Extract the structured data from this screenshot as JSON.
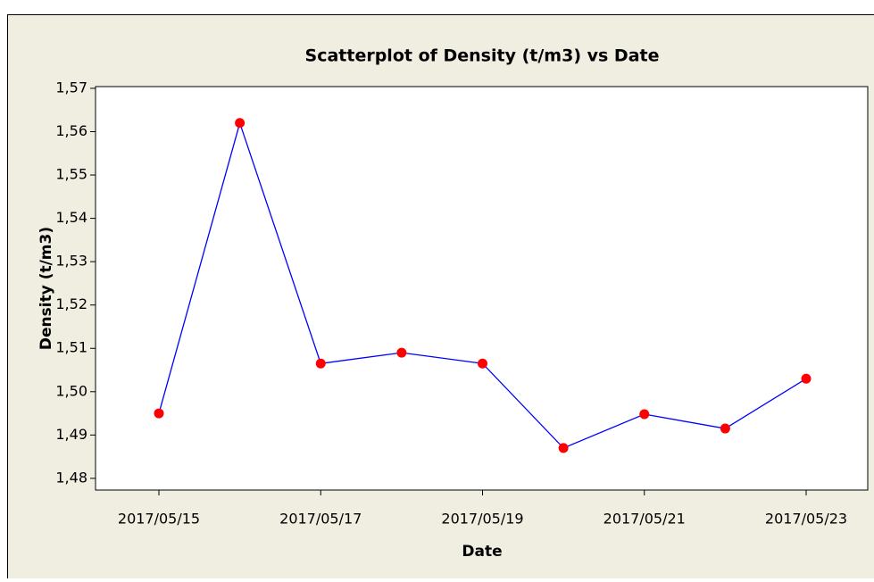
{
  "chart_data": {
    "type": "line",
    "title": "Scatterplot of Density (t/m3) vs Date",
    "xlabel": "Date",
    "ylabel": "Density (t/m3)",
    "x": [
      "2017/05/15",
      "2017/05/16",
      "2017/05/17",
      "2017/05/18",
      "2017/05/19",
      "2017/05/20",
      "2017/05/21",
      "2017/05/22",
      "2017/05/23"
    ],
    "series": [
      {
        "name": "Density (t/m3)",
        "line_color": "#0000ff",
        "marker_color": "#ff0000",
        "values": [
          1.495,
          1.562,
          1.5065,
          1.509,
          1.5065,
          1.487,
          1.4948,
          1.4915,
          1.503
        ]
      }
    ],
    "xticks": [
      "2017/05/15",
      "2017/05/17",
      "2017/05/19",
      "2017/05/21",
      "2017/05/23"
    ],
    "ylim": [
      1.4773,
      1.5704
    ],
    "yticks": [
      {
        "value": 1.48,
        "label": "1,48"
      },
      {
        "value": 1.49,
        "label": "1,49"
      },
      {
        "value": 1.5,
        "label": "1,50"
      },
      {
        "value": 1.51,
        "label": "1,51"
      },
      {
        "value": 1.52,
        "label": "1,52"
      },
      {
        "value": 1.53,
        "label": "1,53"
      },
      {
        "value": 1.54,
        "label": "1,54"
      },
      {
        "value": 1.55,
        "label": "1,55"
      },
      {
        "value": 1.56,
        "label": "1,56"
      },
      {
        "value": 1.57,
        "label": "1,57"
      }
    ]
  }
}
